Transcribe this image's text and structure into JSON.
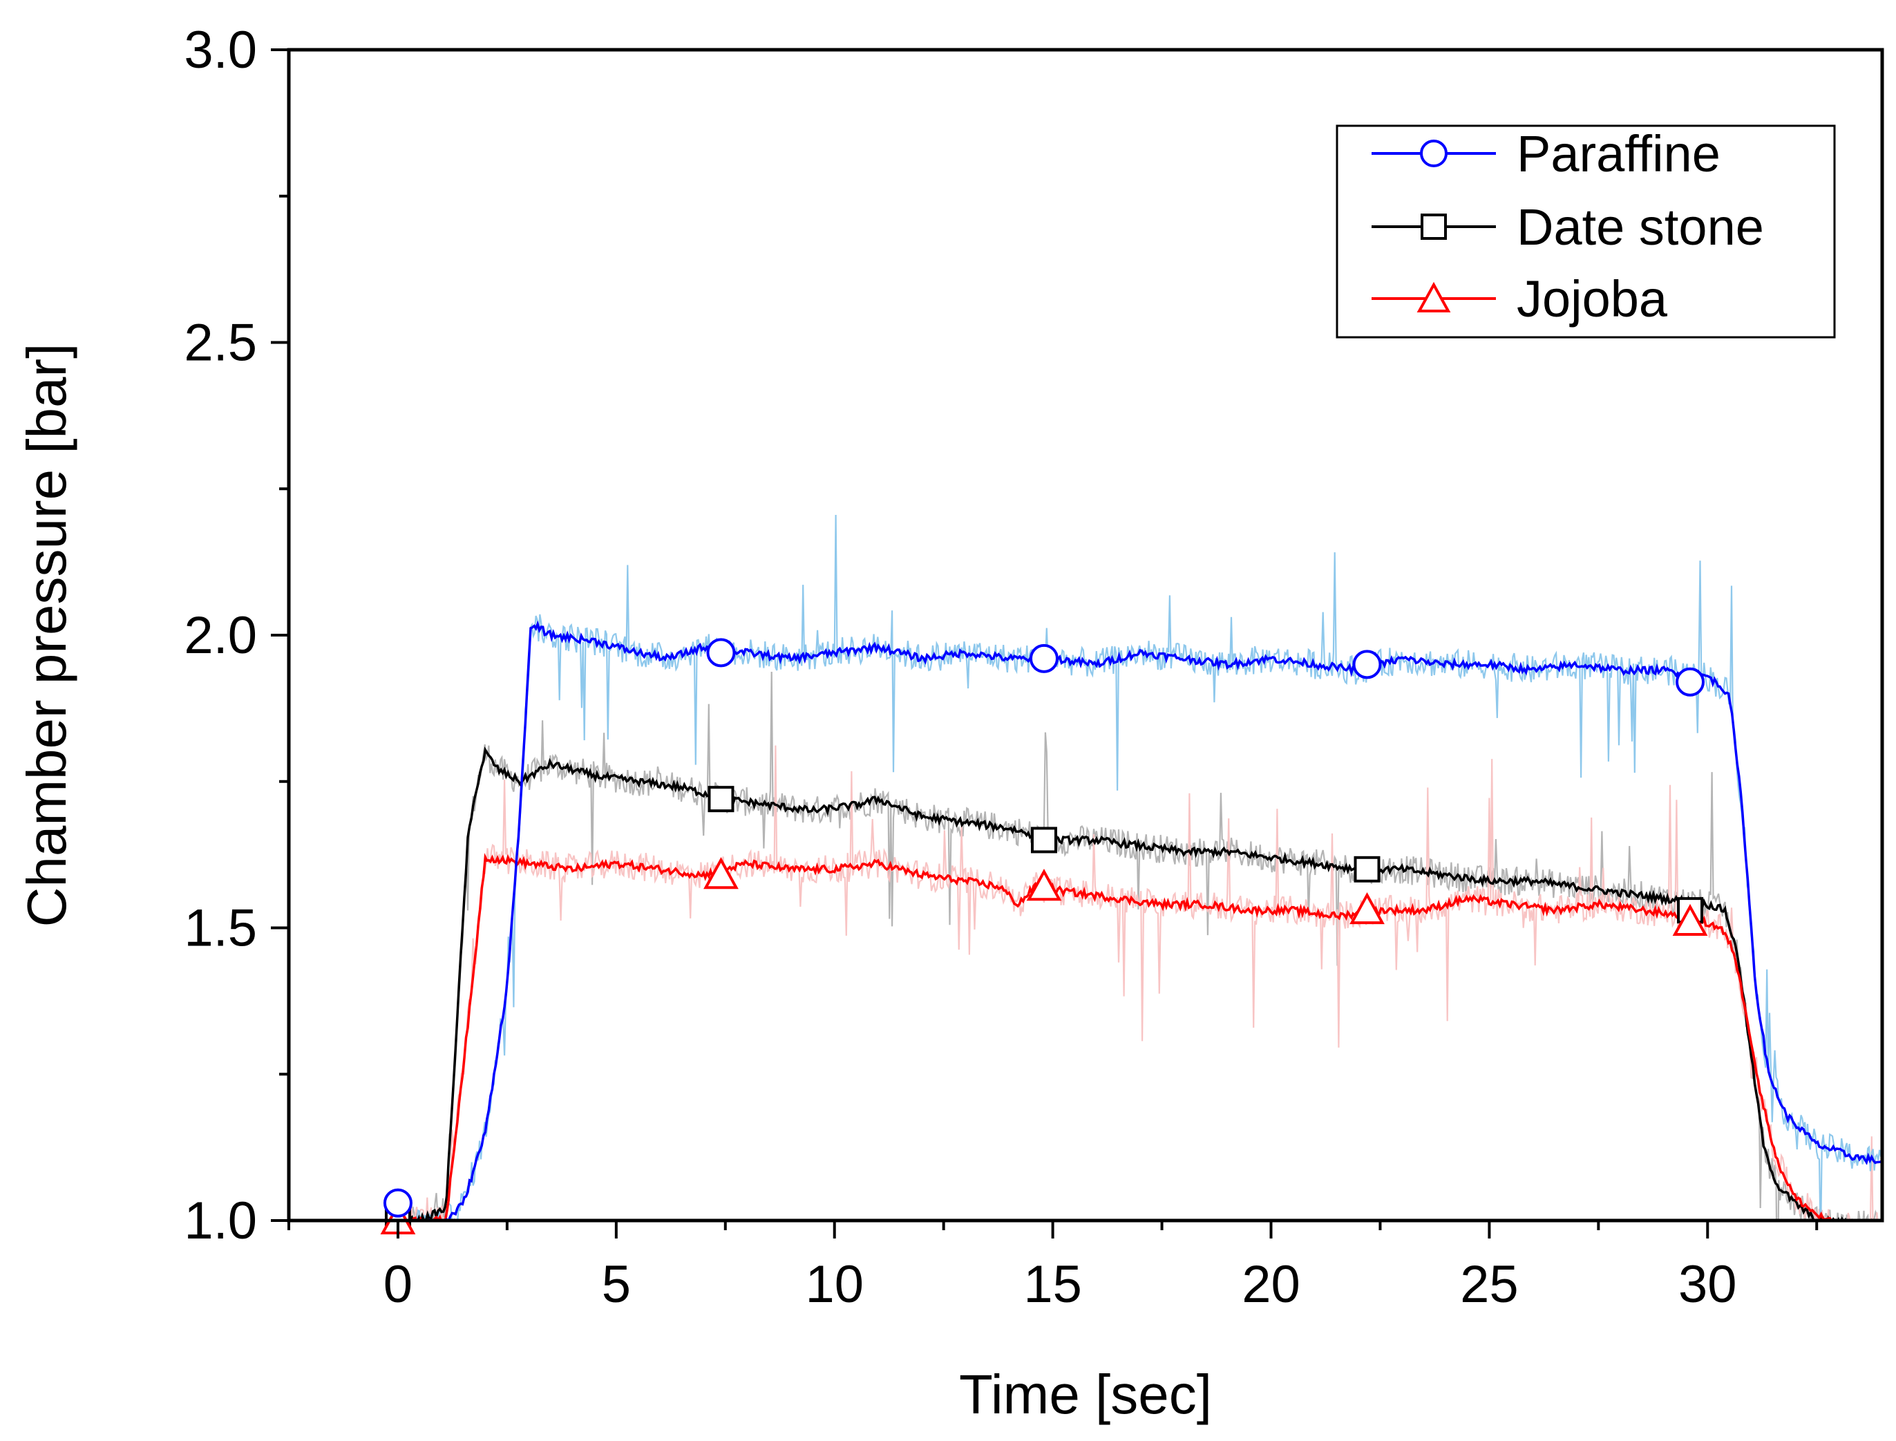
{
  "chart_data": {
    "type": "line",
    "title": "",
    "xlabel": "Time [sec]",
    "ylabel": "Chamber pressure [bar]",
    "xlim": [
      -2.5,
      34
    ],
    "ylim": [
      1.0,
      3.0
    ],
    "xticks": [
      0,
      5,
      10,
      15,
      20,
      25,
      30
    ],
    "xtick_labels": [
      "0",
      "5",
      "10",
      "15",
      "20",
      "25",
      "30"
    ],
    "yticks": [
      1.0,
      1.5,
      2.0,
      2.5,
      3.0
    ],
    "ytick_labels": [
      "1.0",
      "1.5",
      "2.0",
      "2.5",
      "3.0"
    ],
    "grid": false,
    "legend_position": "top-right",
    "series": [
      {
        "name": "Paraffine",
        "color": "#0000ff",
        "noise_color": "#8ec8ec",
        "marker": "circle",
        "markers": [
          [
            0,
            1.03
          ],
          [
            7.4,
            1.97
          ],
          [
            14.8,
            1.96
          ],
          [
            22.2,
            1.95
          ],
          [
            29.6,
            1.92
          ]
        ],
        "points": [
          [
            -0.2,
            1.01
          ],
          [
            0.3,
            1.0
          ],
          [
            1.0,
            0.99
          ],
          [
            1.5,
            1.03
          ],
          [
            2.0,
            1.15
          ],
          [
            2.5,
            1.4
          ],
          [
            2.8,
            1.7
          ],
          [
            3.05,
            2.02
          ],
          [
            3.5,
            2.0
          ],
          [
            4.5,
            1.99
          ],
          [
            5.5,
            1.97
          ],
          [
            6.2,
            1.96
          ],
          [
            7.0,
            1.98
          ],
          [
            8.0,
            1.97
          ],
          [
            9.0,
            1.96
          ],
          [
            10.0,
            1.97
          ],
          [
            11.0,
            1.98
          ],
          [
            12.0,
            1.96
          ],
          [
            13.0,
            1.97
          ],
          [
            14.0,
            1.96
          ],
          [
            15.0,
            1.96
          ],
          [
            16.0,
            1.95
          ],
          [
            17.0,
            1.97
          ],
          [
            18.0,
            1.96
          ],
          [
            19.0,
            1.95
          ],
          [
            20.0,
            1.96
          ],
          [
            21.0,
            1.95
          ],
          [
            22.0,
            1.94
          ],
          [
            23.0,
            1.96
          ],
          [
            24.0,
            1.95
          ],
          [
            25.0,
            1.95
          ],
          [
            26.0,
            1.94
          ],
          [
            27.0,
            1.95
          ],
          [
            28.0,
            1.94
          ],
          [
            29.0,
            1.94
          ],
          [
            30.0,
            1.93
          ],
          [
            30.5,
            1.9
          ],
          [
            30.8,
            1.7
          ],
          [
            31.1,
            1.4
          ],
          [
            31.4,
            1.25
          ],
          [
            31.8,
            1.18
          ],
          [
            32.5,
            1.13
          ],
          [
            33.3,
            1.11
          ],
          [
            34.0,
            1.1
          ]
        ]
      },
      {
        "name": "Date stone",
        "color": "#000000",
        "noise_color": "#b4b4b4",
        "marker": "square",
        "markers": [
          [
            0,
            1.0
          ],
          [
            7.4,
            1.72
          ],
          [
            14.8,
            1.65
          ],
          [
            22.2,
            1.6
          ],
          [
            29.6,
            1.53
          ]
        ],
        "points": [
          [
            -0.2,
            1.0
          ],
          [
            0.5,
            1.0
          ],
          [
            1.1,
            1.02
          ],
          [
            1.4,
            1.4
          ],
          [
            1.6,
            1.65
          ],
          [
            1.8,
            1.74
          ],
          [
            2.0,
            1.8
          ],
          [
            2.3,
            1.77
          ],
          [
            2.8,
            1.75
          ],
          [
            3.5,
            1.78
          ],
          [
            4.5,
            1.76
          ],
          [
            5.5,
            1.75
          ],
          [
            6.5,
            1.74
          ],
          [
            7.5,
            1.72
          ],
          [
            8.5,
            1.71
          ],
          [
            9.5,
            1.7
          ],
          [
            10.5,
            1.71
          ],
          [
            11.0,
            1.72
          ],
          [
            12.0,
            1.69
          ],
          [
            13.0,
            1.68
          ],
          [
            14.0,
            1.67
          ],
          [
            15.0,
            1.65
          ],
          [
            16.0,
            1.65
          ],
          [
            17.0,
            1.64
          ],
          [
            18.0,
            1.63
          ],
          [
            19.0,
            1.63
          ],
          [
            20.0,
            1.62
          ],
          [
            21.0,
            1.61
          ],
          [
            22.0,
            1.6
          ],
          [
            23.0,
            1.6
          ],
          [
            24.0,
            1.59
          ],
          [
            25.0,
            1.58
          ],
          [
            26.0,
            1.58
          ],
          [
            27.0,
            1.57
          ],
          [
            28.0,
            1.56
          ],
          [
            29.0,
            1.55
          ],
          [
            30.0,
            1.54
          ],
          [
            30.4,
            1.53
          ],
          [
            30.7,
            1.45
          ],
          [
            31.0,
            1.28
          ],
          [
            31.3,
            1.12
          ],
          [
            31.6,
            1.06
          ],
          [
            32.0,
            1.03
          ],
          [
            32.5,
            1.0
          ],
          [
            34.0,
            0.99
          ]
        ]
      },
      {
        "name": "Jojoba",
        "color": "#ff0000",
        "noise_color": "#f8c4c4",
        "marker": "triangle",
        "markers": [
          [
            0,
            1.0
          ],
          [
            7.4,
            1.59
          ],
          [
            14.8,
            1.57
          ],
          [
            22.2,
            1.53
          ],
          [
            29.6,
            1.51
          ]
        ],
        "points": [
          [
            -0.2,
            1.0
          ],
          [
            0.8,
            1.0
          ],
          [
            1.1,
            1.0
          ],
          [
            1.4,
            1.2
          ],
          [
            1.7,
            1.4
          ],
          [
            1.9,
            1.55
          ],
          [
            2.0,
            1.62
          ],
          [
            3.0,
            1.61
          ],
          [
            4.0,
            1.6
          ],
          [
            5.0,
            1.61
          ],
          [
            6.0,
            1.6
          ],
          [
            7.0,
            1.59
          ],
          [
            8.0,
            1.61
          ],
          [
            9.0,
            1.6
          ],
          [
            10.0,
            1.6
          ],
          [
            11.0,
            1.61
          ],
          [
            12.0,
            1.59
          ],
          [
            13.0,
            1.58
          ],
          [
            13.8,
            1.57
          ],
          [
            14.2,
            1.54
          ],
          [
            14.6,
            1.57
          ],
          [
            15.5,
            1.56
          ],
          [
            16.5,
            1.55
          ],
          [
            17.5,
            1.54
          ],
          [
            18.5,
            1.54
          ],
          [
            19.5,
            1.53
          ],
          [
            20.5,
            1.53
          ],
          [
            21.5,
            1.52
          ],
          [
            22.5,
            1.53
          ],
          [
            23.5,
            1.53
          ],
          [
            24.5,
            1.55
          ],
          [
            25.5,
            1.54
          ],
          [
            26.5,
            1.53
          ],
          [
            27.5,
            1.54
          ],
          [
            28.5,
            1.53
          ],
          [
            29.5,
            1.52
          ],
          [
            30.3,
            1.5
          ],
          [
            30.6,
            1.46
          ],
          [
            30.9,
            1.35
          ],
          [
            31.2,
            1.22
          ],
          [
            31.6,
            1.1
          ],
          [
            32.0,
            1.04
          ],
          [
            32.5,
            1.01
          ],
          [
            33.0,
            0.99
          ],
          [
            34.0,
            0.99
          ]
        ]
      }
    ]
  }
}
